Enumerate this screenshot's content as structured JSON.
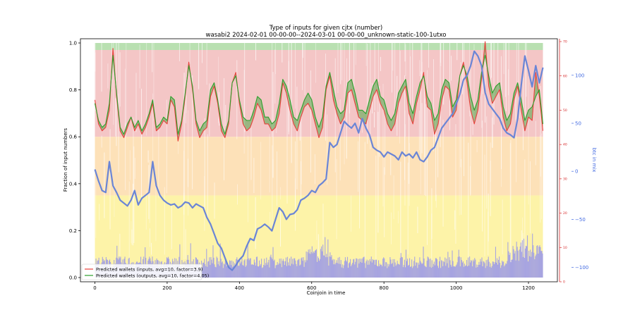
{
  "chart_data": {
    "type": "area",
    "title": "Type of inputs for given cjtx (number)",
    "subtitle": "wasabi2 2024-02-01 00-00-00--2024-03-01 00-00-00_unknown-static-100-1utxo",
    "xlabel": "Coinjoin in time",
    "ylabel": "Fraction of input numbers",
    "ylabel_right": "btc in mix",
    "xlim": [
      -40,
      1280
    ],
    "ylim": [
      0,
      1.0
    ],
    "ylim_right_red": [
      0,
      70
    ],
    "ylim_right_blue": [
      -115,
      138
    ],
    "x_ticks": [
      "0",
      "200",
      "400",
      "600",
      "800",
      "1000",
      "1200"
    ],
    "y_ticks": [
      "0.0",
      "0.2",
      "0.4",
      "0.6",
      "0.8",
      "1.0"
    ],
    "y_ticks_right_red": [
      "0",
      "10",
      "20",
      "30",
      "40",
      "50",
      "60",
      "70"
    ],
    "y_ticks_right_blue": [
      "−100",
      "−50",
      "0",
      "50",
      "100"
    ],
    "legend_position": "lower-left",
    "series": [
      {
        "name": "Predicted wallets (inputs, avg=10, factor=3.9)",
        "color": "#e8413c",
        "axis": "right-red",
        "x": [
          0,
          10,
          20,
          30,
          40,
          50,
          60,
          70,
          80,
          90,
          100,
          110,
          120,
          130,
          140,
          150,
          160,
          170,
          180,
          190,
          200,
          210,
          220,
          230,
          240,
          250,
          260,
          270,
          280,
          290,
          300,
          310,
          320,
          330,
          340,
          350,
          360,
          370,
          380,
          390,
          400,
          410,
          420,
          430,
          440,
          450,
          460,
          470,
          480,
          490,
          500,
          510,
          520,
          530,
          540,
          550,
          560,
          570,
          580,
          590,
          600,
          610,
          620,
          630,
          640,
          650,
          660,
          670,
          680,
          690,
          700,
          710,
          720,
          730,
          740,
          750,
          760,
          770,
          780,
          790,
          800,
          810,
          820,
          830,
          840,
          850,
          860,
          870,
          880,
          890,
          900,
          910,
          920,
          930,
          940,
          950,
          960,
          970,
          980,
          990,
          1000,
          1010,
          1020,
          1030,
          1040,
          1050,
          1060,
          1070,
          1080,
          1090,
          1100,
          1110,
          1120,
          1130,
          1140,
          1150,
          1160,
          1170,
          1180,
          1190,
          1200,
          1210,
          1220,
          1230,
          1240
        ],
        "values": [
          53,
          46,
          44,
          45,
          50,
          68,
          54,
          44,
          42,
          45,
          48,
          44,
          46,
          43,
          45,
          48,
          52,
          44,
          45,
          47,
          46,
          53,
          51,
          41,
          46,
          54,
          64,
          56,
          46,
          42,
          44,
          45,
          54,
          57,
          52,
          44,
          42,
          46,
          58,
          61,
          52,
          46,
          44,
          45,
          48,
          52,
          50,
          46,
          46,
          44,
          45,
          49,
          58,
          55,
          50,
          46,
          44,
          48,
          51,
          52,
          50,
          46,
          42,
          45,
          56,
          60,
          53,
          49,
          46,
          48,
          55,
          56,
          52,
          48,
          47,
          46,
          50,
          54,
          56,
          52,
          50,
          46,
          44,
          46,
          52,
          55,
          57,
          49,
          46,
          52,
          56,
          61,
          51,
          50,
          43,
          46,
          53,
          57,
          56,
          48,
          50,
          60,
          64,
          58,
          50,
          46,
          50,
          59,
          70,
          57,
          52,
          54,
          56,
          48,
          44,
          46,
          53,
          57,
          50,
          44,
          48,
          47,
          61,
          54,
          44
        ]
      },
      {
        "name": "Predicted wallets (outputs, avg=10, factor=4.05)",
        "color": "#2ca02c",
        "axis": "right-red",
        "x": [
          0,
          10,
          20,
          30,
          40,
          50,
          60,
          70,
          80,
          90,
          100,
          110,
          120,
          130,
          140,
          150,
          160,
          170,
          180,
          190,
          200,
          210,
          220,
          230,
          240,
          250,
          260,
          270,
          280,
          290,
          300,
          310,
          320,
          330,
          340,
          350,
          360,
          370,
          380,
          390,
          400,
          410,
          420,
          430,
          440,
          450,
          460,
          470,
          480,
          490,
          500,
          510,
          520,
          530,
          540,
          550,
          560,
          570,
          580,
          590,
          600,
          610,
          620,
          630,
          640,
          650,
          660,
          670,
          680,
          690,
          700,
          710,
          720,
          730,
          740,
          750,
          760,
          770,
          780,
          790,
          800,
          810,
          820,
          830,
          840,
          850,
          860,
          870,
          880,
          890,
          900,
          910,
          920,
          930,
          940,
          950,
          960,
          970,
          980,
          990,
          1000,
          1010,
          1020,
          1030,
          1040,
          1050,
          1060,
          1070,
          1080,
          1090,
          1100,
          1110,
          1120,
          1130,
          1140,
          1150,
          1160,
          1170,
          1180,
          1190,
          1200,
          1210,
          1220,
          1230,
          1240
        ],
        "values": [
          52,
          47,
          45,
          46,
          52,
          66,
          55,
          45,
          43,
          46,
          48,
          45,
          47,
          44,
          46,
          49,
          53,
          45,
          46,
          48,
          47,
          54,
          53,
          43,
          47,
          55,
          63,
          57,
          47,
          44,
          46,
          47,
          56,
          58,
          53,
          46,
          43,
          47,
          58,
          60,
          53,
          48,
          47,
          47,
          50,
          54,
          53,
          48,
          48,
          46,
          47,
          52,
          59,
          57,
          53,
          48,
          47,
          50,
          53,
          55,
          53,
          48,
          45,
          48,
          57,
          61,
          56,
          51,
          49,
          50,
          58,
          59,
          55,
          50,
          50,
          49,
          53,
          57,
          59,
          54,
          53,
          49,
          47,
          49,
          55,
          57,
          59,
          52,
          49,
          54,
          58,
          60,
          54,
          52,
          47,
          49,
          56,
          59,
          58,
          51,
          53,
          60,
          63,
          60,
          54,
          50,
          53,
          61,
          66,
          60,
          55,
          57,
          58,
          51,
          47,
          49,
          55,
          58,
          53,
          47,
          50,
          51,
          54,
          56,
          46
        ]
      },
      {
        "name": "btc in mix",
        "color": "#6a85d6",
        "axis": "right-blue",
        "x": [
          0,
          10,
          20,
          30,
          40,
          50,
          60,
          70,
          80,
          90,
          100,
          110,
          120,
          130,
          140,
          150,
          160,
          170,
          180,
          190,
          200,
          210,
          220,
          230,
          240,
          250,
          260,
          270,
          280,
          290,
          300,
          310,
          320,
          330,
          340,
          350,
          360,
          370,
          380,
          390,
          400,
          410,
          420,
          430,
          440,
          450,
          460,
          470,
          480,
          490,
          500,
          510,
          520,
          530,
          540,
          550,
          560,
          570,
          580,
          590,
          600,
          610,
          620,
          630,
          640,
          650,
          660,
          670,
          680,
          690,
          700,
          710,
          720,
          730,
          740,
          750,
          760,
          770,
          780,
          790,
          800,
          810,
          820,
          830,
          840,
          850,
          860,
          870,
          880,
          890,
          900,
          910,
          920,
          930,
          940,
          950,
          960,
          970,
          980,
          990,
          1000,
          1010,
          1020,
          1030,
          1040,
          1050,
          1060,
          1070,
          1080,
          1090,
          1100,
          1110,
          1120,
          1130,
          1140,
          1150,
          1160,
          1170,
          1180,
          1190,
          1200,
          1210,
          1220,
          1230,
          1240
        ],
        "values": [
          2,
          -10,
          -20,
          -22,
          10,
          -15,
          -22,
          -30,
          -33,
          -36,
          -30,
          -20,
          -35,
          -28,
          -25,
          -22,
          10,
          -15,
          -25,
          -30,
          -33,
          -35,
          -34,
          -38,
          -36,
          -32,
          -33,
          -38,
          -34,
          -36,
          -38,
          -48,
          -55,
          -65,
          -75,
          -80,
          -90,
          -100,
          -103,
          -98,
          -92,
          -88,
          -78,
          -70,
          -72,
          -60,
          -58,
          -55,
          -58,
          -62,
          -50,
          -38,
          -42,
          -50,
          -45,
          -44,
          -40,
          -30,
          -28,
          -25,
          -20,
          -22,
          -15,
          -12,
          -8,
          30,
          25,
          28,
          40,
          52,
          48,
          45,
          50,
          40,
          55,
          45,
          38,
          25,
          22,
          20,
          15,
          20,
          18,
          16,
          12,
          20,
          16,
          18,
          14,
          20,
          12,
          10,
          15,
          22,
          25,
          35,
          45,
          50,
          55,
          60,
          70,
          80,
          95,
          100,
          110,
          125,
          120,
          110,
          82,
          70,
          65,
          60,
          55,
          45,
          40,
          38,
          35,
          55,
          90,
          120,
          105,
          88,
          110,
          92,
          108
        ]
      }
    ]
  },
  "legend": {
    "inputs_label": "Predicted wallets (inputs, avg=10, factor=3.9)",
    "outputs_label": "Predicted wallets (outputs, avg=10, factor=4.05)"
  },
  "colors": {
    "red_area": "#f4c6c6",
    "green_band": "#b9e0b1",
    "orange_area": "#fde1b8",
    "yellow_area": "#fdf3a8",
    "blue_bars": "#8c8cf2",
    "red_line": "#e8413c",
    "green_line": "#2ca02c",
    "blue_line": "#6a85d6"
  }
}
